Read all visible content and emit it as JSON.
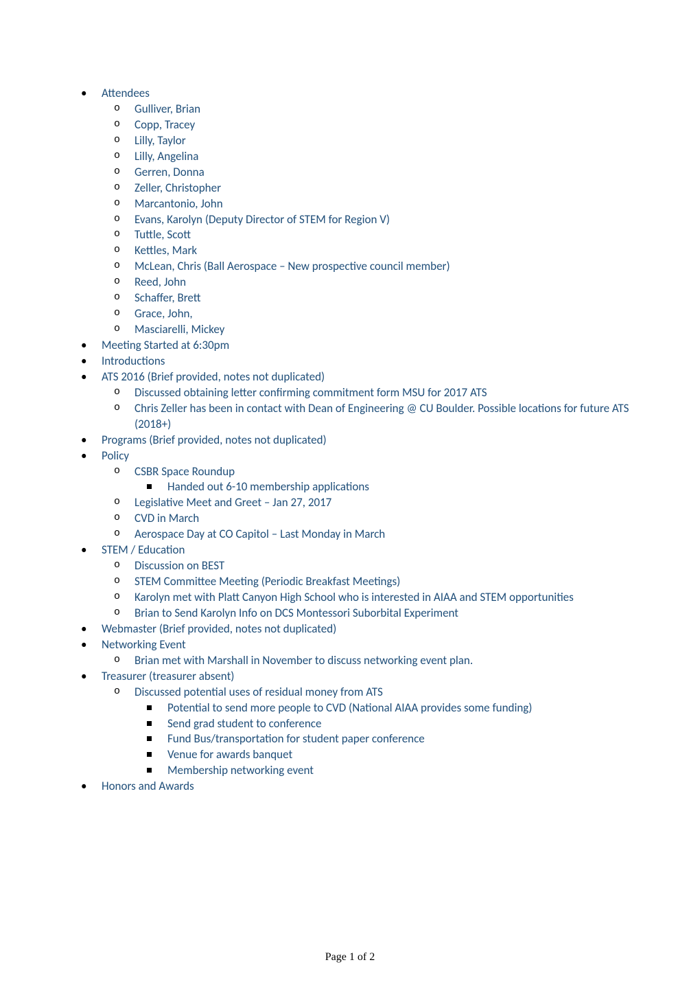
{
  "colors": {
    "body_text": "#1f4e79",
    "bullet_color": "#000000",
    "background": "#ffffff"
  },
  "typography": {
    "body_fontsize_pt": 11,
    "body_family": "Calibri",
    "footer_family": "Times New Roman",
    "footer_fontsize_pt": 12
  },
  "doc": {
    "items": [
      {
        "label": "Attendees",
        "children": [
          {
            "label": "Gulliver, Brian"
          },
          {
            "label": "Copp, Tracey"
          },
          {
            "label": "Lilly, Taylor"
          },
          {
            "label": "Lilly, Angelina"
          },
          {
            "label": "Gerren, Donna"
          },
          {
            "label": "Zeller, Christopher"
          },
          {
            "label": "Marcantonio, John"
          },
          {
            "label": "Evans, Karolyn (Deputy Director of STEM for Region V)"
          },
          {
            "label": "Tuttle, Scott"
          },
          {
            "label": "Kettles, Mark"
          },
          {
            "label": "McLean, Chris (Ball Aerospace – New prospective council member)"
          },
          {
            "label": "Reed, John"
          },
          {
            "label": "Schaffer, Brett"
          },
          {
            "label": "Grace, John,"
          },
          {
            "label": "Masciarelli, Mickey"
          }
        ]
      },
      {
        "label": "Meeting Started at 6:30pm"
      },
      {
        "label": "Introductions"
      },
      {
        "label": "ATS 2016 (Brief provided, notes not duplicated)",
        "children": [
          {
            "label": "Discussed obtaining letter confirming commitment form MSU for 2017 ATS"
          },
          {
            "label": "Chris Zeller has been in contact with Dean of Engineering @ CU Boulder. Possible locations for future ATS (2018+)"
          }
        ]
      },
      {
        "label": "Programs (Brief provided, notes not duplicated)"
      },
      {
        "label": "Policy",
        "children": [
          {
            "label": "CSBR Space Roundup",
            "children": [
              {
                "label": "Handed out 6-10 membership applications"
              }
            ]
          },
          {
            "label": "Legislative Meet and Greet – Jan 27, 2017"
          },
          {
            "label": "CVD in March"
          },
          {
            "label": "Aerospace Day at CO Capitol – Last Monday in March"
          }
        ]
      },
      {
        "label": "STEM / Education",
        "children": [
          {
            "label": "Discussion on BEST"
          },
          {
            "label": "STEM Committee Meeting (Periodic Breakfast Meetings)"
          },
          {
            "label": "Karolyn met with Platt Canyon High School who is interested in AIAA and STEM opportunities"
          },
          {
            "label": "Brian to Send Karolyn Info on DCS Montessori Suborbital Experiment"
          }
        ]
      },
      {
        "label": "Webmaster (Brief provided, notes not duplicated)"
      },
      {
        "label": "Networking Event",
        "children": [
          {
            "label": "Brian met with Marshall in November to discuss networking event plan."
          }
        ]
      },
      {
        "label": "Treasurer (treasurer absent)",
        "children": [
          {
            "label": "Discussed potential uses of residual money from ATS",
            "children": [
              {
                "label": "Potential to send more people to CVD (National AIAA provides some funding)"
              },
              {
                "label": "Send grad student to conference"
              },
              {
                "label": "Fund Bus/transportation for student paper conference"
              },
              {
                "label": "Venue for awards banquet"
              },
              {
                "label": "Membership networking event"
              }
            ]
          }
        ]
      },
      {
        "label": "Honors and Awards"
      }
    ]
  },
  "footer": {
    "prefix": "Page ",
    "current": "1",
    "of": " of ",
    "total": "2"
  }
}
